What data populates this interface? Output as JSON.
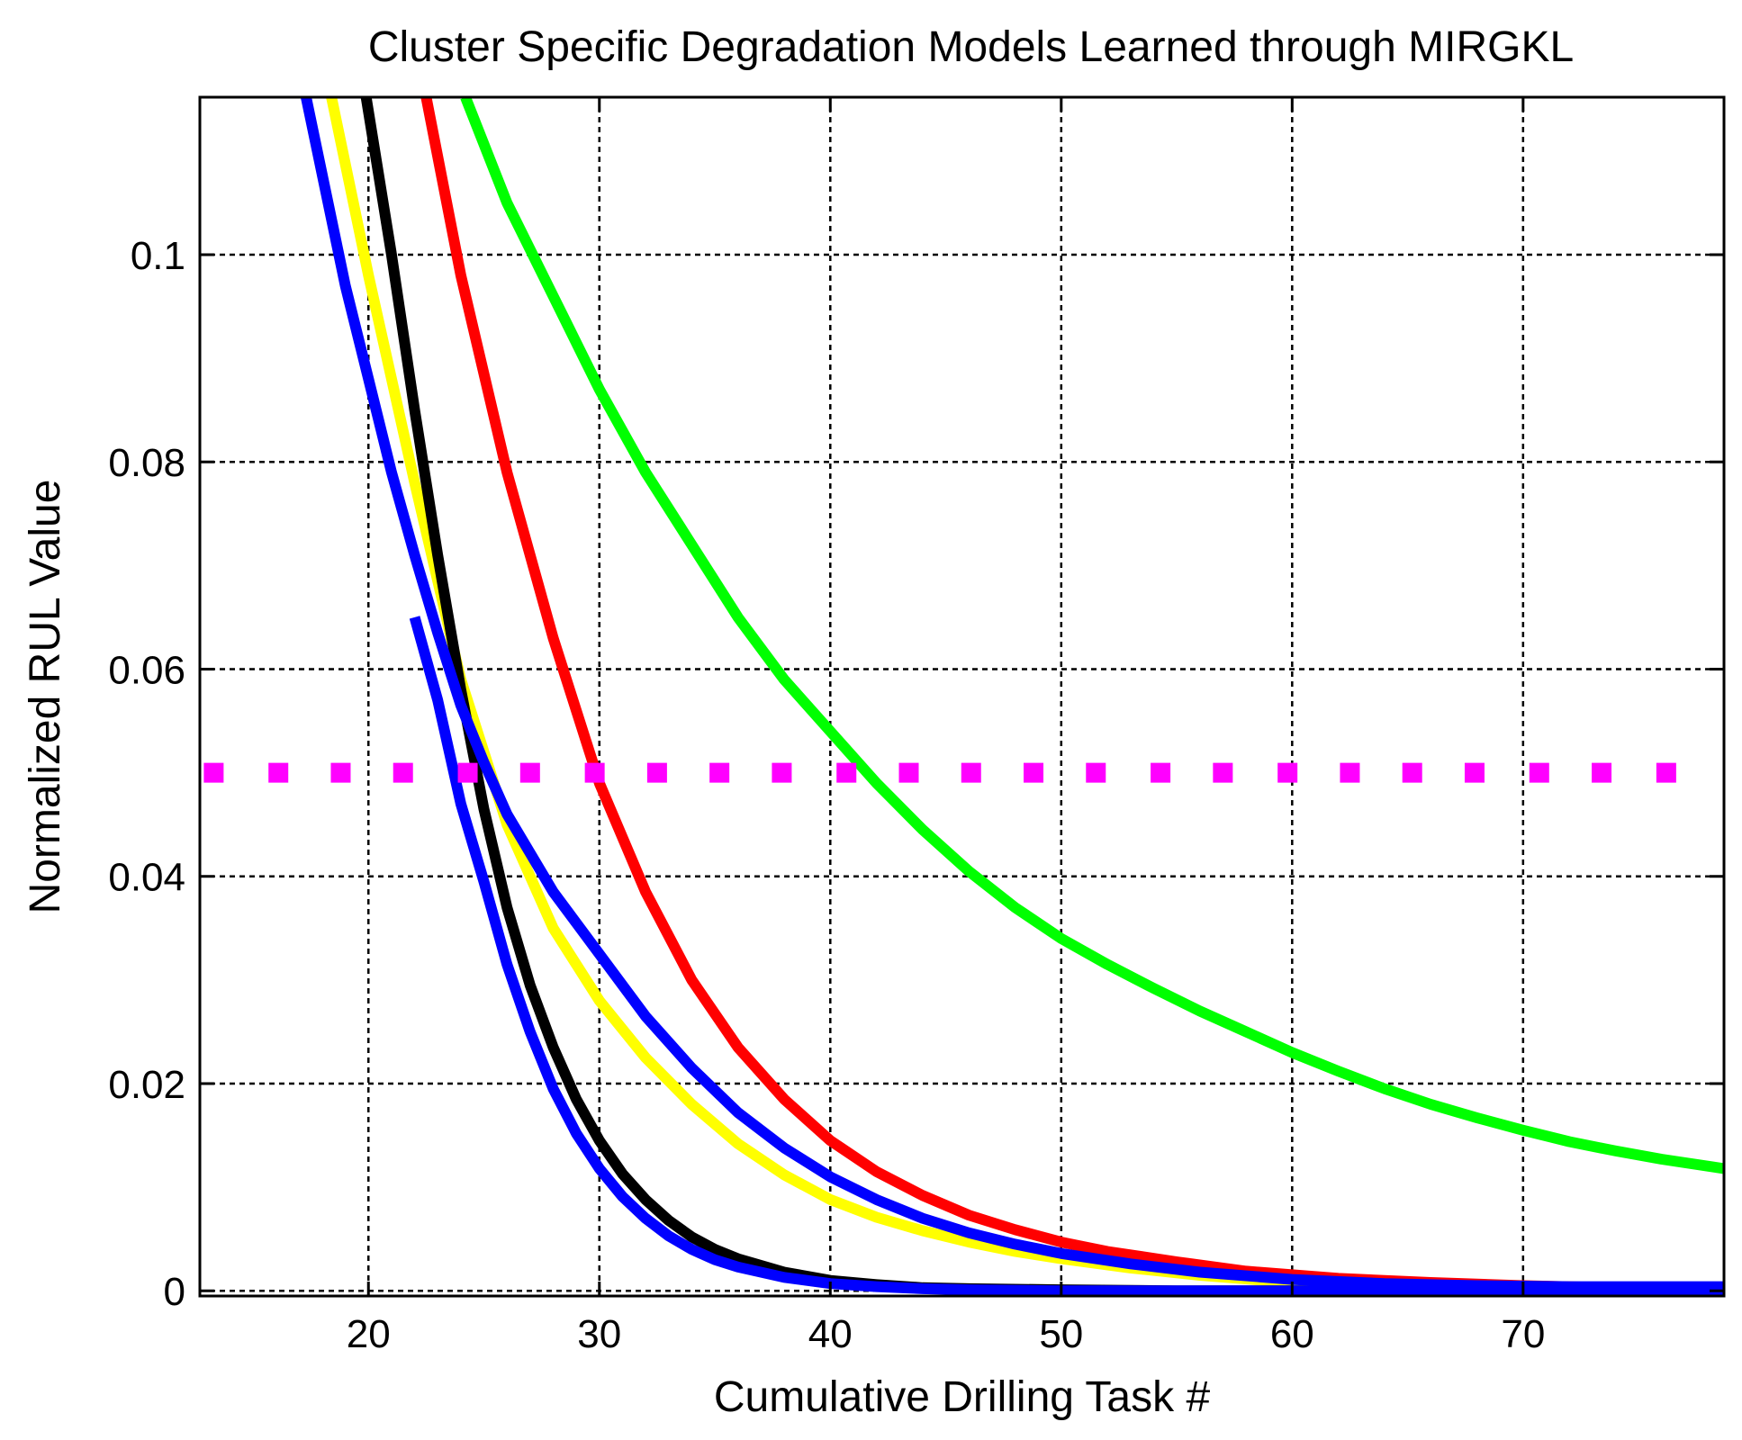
{
  "chart_data": {
    "type": "line",
    "title": "Cluster Specific Degradation Models Learned through MIRGKL",
    "xlabel": "Cumulative Drilling Task #",
    "ylabel": "Normalized RUL Value",
    "xlim": [
      12.7,
      78.7
    ],
    "ylim": [
      -0.0005,
      0.1152
    ],
    "grid": true,
    "xticks": [
      20,
      30,
      40,
      50,
      60,
      70
    ],
    "xtick_labels": [
      "20",
      "30",
      "40",
      "50",
      "60",
      "70"
    ],
    "yticks": [
      0,
      0.02,
      0.04,
      0.06,
      0.08,
      0.1
    ],
    "ytick_labels": [
      "0",
      "0.02",
      "0.04",
      "0.06",
      "0.08",
      "0.1"
    ],
    "threshold": {
      "name": "threshold",
      "value": 0.05,
      "color": "#ff00ff",
      "x": [
        13.3,
        16.1,
        18.8,
        21.5,
        24.3,
        27.0,
        29.8,
        32.5,
        35.2,
        37.9,
        40.7,
        43.4,
        46.1,
        48.8,
        51.5,
        54.3,
        57.0,
        59.8,
        62.5,
        65.2,
        67.9,
        70.7,
        73.4,
        76.2
      ]
    },
    "series": [
      {
        "name": "green",
        "color": "#00ff00",
        "x": [
          24.2,
          26,
          28,
          30,
          32,
          34,
          36,
          38,
          40,
          42,
          44,
          46,
          48,
          50,
          52,
          54,
          56,
          58,
          60,
          62,
          64,
          66,
          68,
          70,
          72,
          74,
          76,
          78.7
        ],
        "y": [
          0.1152,
          0.105,
          0.096,
          0.087,
          0.079,
          0.072,
          0.065,
          0.059,
          0.054,
          0.049,
          0.0445,
          0.0405,
          0.037,
          0.034,
          0.0315,
          0.0292,
          0.027,
          0.025,
          0.023,
          0.0212,
          0.0195,
          0.018,
          0.0167,
          0.0155,
          0.0144,
          0.0135,
          0.0127,
          0.0118
        ]
      },
      {
        "name": "red",
        "color": "#ff0000",
        "x": [
          22.5,
          24,
          26,
          28,
          30,
          32,
          34,
          36,
          38,
          40,
          42,
          44,
          46,
          48,
          50,
          52,
          55,
          58,
          62,
          66,
          70,
          74,
          78.7
        ],
        "y": [
          0.1152,
          0.098,
          0.079,
          0.063,
          0.049,
          0.0385,
          0.03,
          0.0235,
          0.0185,
          0.0145,
          0.0115,
          0.0092,
          0.0073,
          0.0059,
          0.0047,
          0.0038,
          0.0028,
          0.0019,
          0.0012,
          0.0008,
          0.0005,
          0.0003,
          0.0002
        ]
      },
      {
        "name": "yellow",
        "color": "#ffff00",
        "x": [
          18.4,
          20,
          22,
          24,
          26,
          28,
          30,
          32,
          34,
          36,
          38,
          40,
          42,
          44,
          46,
          48,
          50,
          53,
          56,
          60,
          64,
          68,
          72,
          76,
          78.7
        ],
        "y": [
          0.1152,
          0.098,
          0.078,
          0.059,
          0.045,
          0.035,
          0.028,
          0.0225,
          0.018,
          0.0142,
          0.0112,
          0.0088,
          0.0071,
          0.0058,
          0.0047,
          0.0038,
          0.0031,
          0.0022,
          0.0015,
          0.0008,
          0.0004,
          0.0002,
          0.0001,
          0,
          0
        ]
      },
      {
        "name": "black",
        "color": "#000000",
        "x": [
          19.9,
          21,
          22,
          23,
          24,
          25,
          26,
          27,
          28,
          29,
          30,
          31,
          32,
          33,
          34,
          35,
          36,
          38,
          40,
          42,
          44,
          46,
          50,
          55,
          60,
          65,
          70,
          78.7
        ],
        "y": [
          0.1152,
          0.1,
          0.085,
          0.071,
          0.058,
          0.0465,
          0.037,
          0.0295,
          0.0235,
          0.0185,
          0.0145,
          0.0113,
          0.0088,
          0.0068,
          0.0052,
          0.004,
          0.0031,
          0.0018,
          0.001,
          0.0006,
          0.0003,
          0.0002,
          0.0001,
          0,
          0,
          0,
          0,
          0
        ]
      },
      {
        "name": "blue-steep",
        "color": "#0000ff",
        "x": [
          22,
          23,
          24,
          25,
          26,
          27,
          28,
          29,
          30,
          31,
          32,
          33,
          34,
          35,
          36,
          38,
          40,
          42,
          44,
          46,
          50,
          55,
          60,
          70,
          78.7
        ],
        "y": [
          0.065,
          0.057,
          0.047,
          0.0395,
          0.0315,
          0.025,
          0.0195,
          0.0152,
          0.0118,
          0.0091,
          0.007,
          0.0053,
          0.004,
          0.003,
          0.0023,
          0.0013,
          0.0007,
          0.0004,
          0.0002,
          0.0001,
          0,
          0,
          0,
          0,
          0
        ]
      },
      {
        "name": "blue",
        "color": "#0000ff",
        "x": [
          17.3,
          19,
          20,
          21,
          22,
          23,
          24,
          25,
          26,
          28,
          30,
          32,
          34,
          36,
          38,
          40,
          42,
          44,
          46,
          48,
          50,
          53,
          56,
          60,
          64,
          68,
          72,
          76,
          78.7
        ],
        "y": [
          0.1152,
          0.097,
          0.088,
          0.079,
          0.071,
          0.0635,
          0.0565,
          0.051,
          0.046,
          0.0385,
          0.0325,
          0.0265,
          0.0215,
          0.0172,
          0.0138,
          0.011,
          0.0088,
          0.007,
          0.0056,
          0.0045,
          0.0036,
          0.0026,
          0.0018,
          0.0011,
          0.0007,
          0.0005,
          0.0004,
          0.0004,
          0.0004
        ]
      }
    ]
  }
}
